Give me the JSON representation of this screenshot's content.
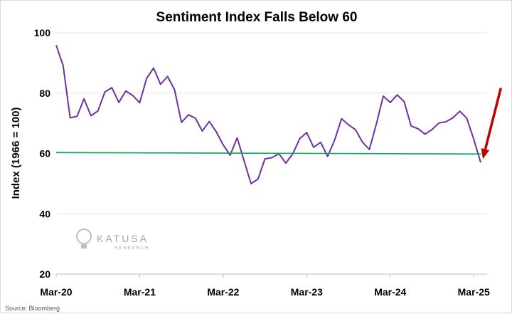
{
  "chart_data": {
    "type": "line",
    "title": "Sentiment Index Falls Below 60",
    "ylabel": "Index (1966 = 100)",
    "xlabel": "",
    "ylim": [
      20,
      100
    ],
    "yticks": [
      20,
      40,
      60,
      80,
      100
    ],
    "xticks": [
      "Mar-20",
      "Mar-21",
      "Mar-22",
      "Mar-23",
      "Mar-24",
      "Mar-25"
    ],
    "grid": "horizontal",
    "series": [
      {
        "color": "#7030a0",
        "values": [
          95.9,
          89.1,
          71.8,
          72.3,
          78.1,
          72.5,
          74.1,
          80.4,
          81.8,
          76.9,
          80.7,
          79.2,
          76.8,
          84.9,
          88.3,
          82.9,
          85.5,
          81.2,
          70.3,
          72.8,
          71.7,
          67.4,
          70.6,
          67.2,
          62.8,
          59.4,
          65.2,
          57.6,
          50.0,
          51.5,
          58.2,
          58.6,
          59.9,
          56.8,
          59.9,
          64.9,
          66.9,
          62.0,
          63.7,
          59.0,
          64.4,
          71.5,
          69.5,
          67.9,
          63.8,
          61.3,
          69.7,
          79.0,
          76.9,
          79.4,
          77.2,
          69.1,
          68.2,
          66.4,
          67.9,
          70.1,
          70.5,
          71.8,
          74.0,
          71.7,
          64.7,
          57.0
        ]
      },
      {
        "color": "#00b050",
        "values": [
          60.3,
          59.8
        ]
      }
    ],
    "annotations": [
      {
        "type": "arrow",
        "color": "#c00000"
      }
    ]
  },
  "logo": {
    "main": "KATUSA",
    "sub": "RESEARCH"
  },
  "source": "Source: Bloomberg"
}
